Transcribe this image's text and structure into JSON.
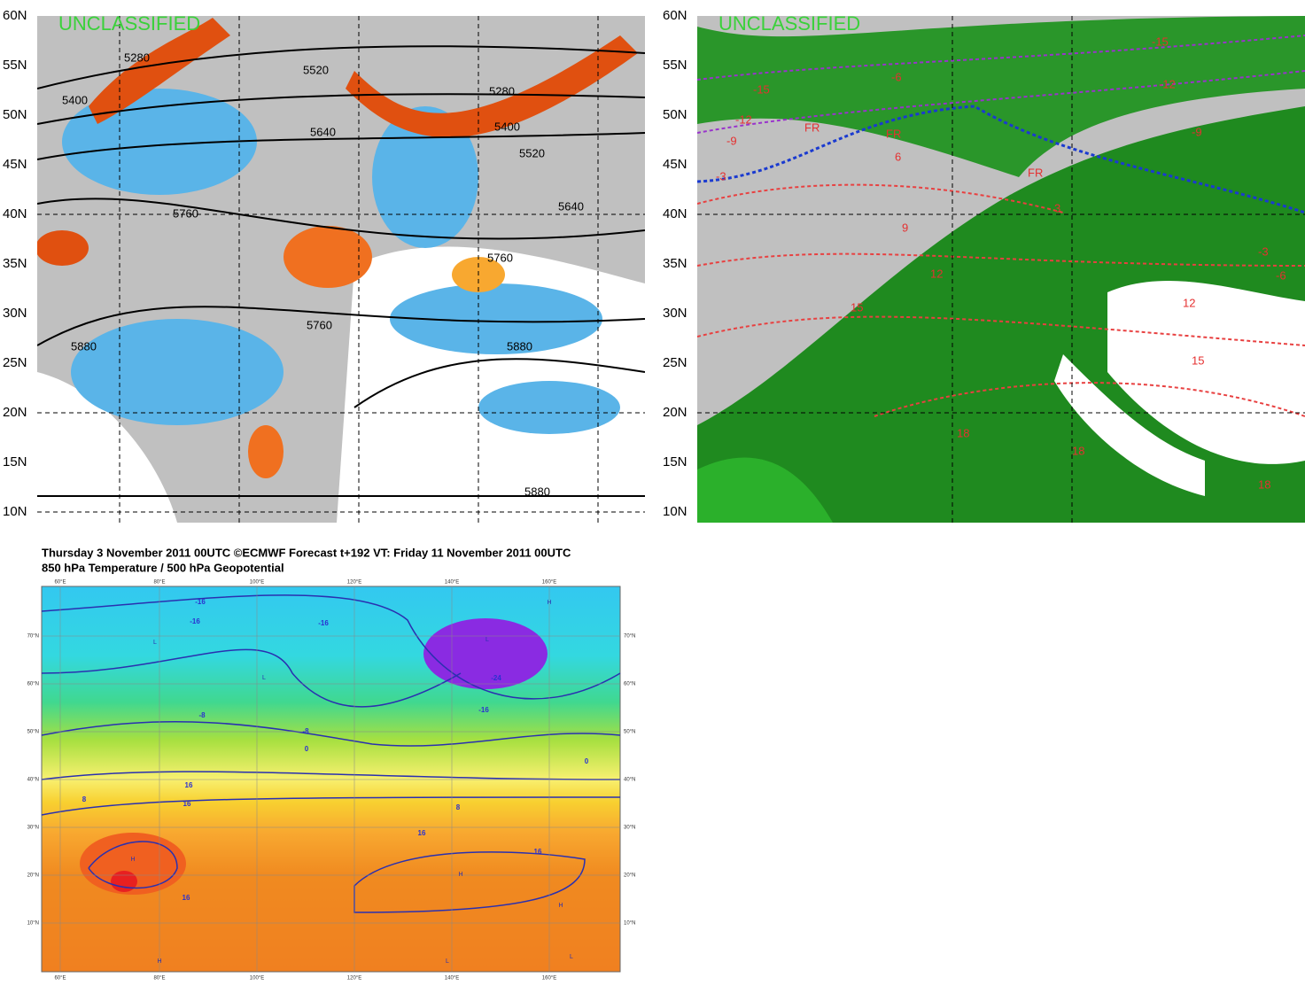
{
  "panels": [
    {
      "watermark": "UNCLASSIFIED",
      "lat_labels": [
        "60N",
        "55N",
        "50N",
        "45N",
        "40N",
        "35N",
        "30N",
        "25N",
        "20N",
        "15N",
        "10N"
      ],
      "contour_labels": [
        "5280",
        "5400",
        "5520",
        "5640",
        "5760",
        "5880",
        "5280",
        "5400",
        "5520",
        "5640",
        "5760",
        "5880",
        "5880",
        "5760"
      ]
    },
    {
      "watermark": "UNCLASSIFIED",
      "lat_labels": [
        "60N",
        "55N",
        "50N",
        "45N",
        "40N",
        "35N",
        "30N",
        "25N",
        "20N",
        "15N",
        "10N"
      ],
      "contour_labels": [
        "-15",
        "-12",
        "-9",
        "-6",
        "-3",
        "-15",
        "-12",
        "-9",
        "FR",
        "FR",
        "FR",
        "3",
        "6",
        "9",
        "12",
        "15",
        "18",
        "18",
        "18",
        "12",
        "15",
        "-6",
        "-3"
      ]
    },
    {
      "title": "Thursday 3 November 2011 00UTC ©ECMWF Forecast t+192 VT: Friday 11 November 2011 00UTC",
      "subtitle": "850 hPa Temperature / 500 hPa Geopotential",
      "lon_labels": [
        "60°E",
        "80°E",
        "100°E",
        "120°E",
        "140°E",
        "160°E"
      ],
      "lat_labels": [
        "70°N",
        "60°N",
        "50°N",
        "40°N",
        "30°N",
        "20°N",
        "10°N"
      ],
      "contour_labels": [
        "-16",
        "-16",
        "-16",
        "-24",
        "-16",
        "-8",
        "-8",
        "0",
        "0",
        "8",
        "8",
        "16",
        "16",
        "16",
        "16",
        "16"
      ],
      "pressure_labels": [
        "H",
        "L",
        "L",
        "L",
        "H",
        "H",
        "L",
        "H",
        "L",
        "H"
      ]
    }
  ]
}
